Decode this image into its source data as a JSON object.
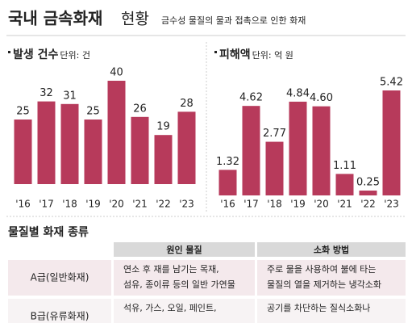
{
  "header": {
    "title": "국내 금속화재",
    "title_light": "현황",
    "subtitle": "금수성 물질의 물과 접촉으로 인한 화재"
  },
  "chart_data": [
    {
      "type": "bar",
      "title": "발생 건수",
      "unit": "단위: 건",
      "color": "#b73a5b",
      "categories": [
        "'16",
        "'17",
        "'18",
        "'19",
        "'20",
        "'21",
        "'22",
        "'23"
      ],
      "values": [
        25,
        32,
        31,
        25,
        40,
        26,
        19,
        28
      ]
    },
    {
      "type": "bar",
      "title": "피해액",
      "unit": "단위: 억 원",
      "color": "#b73a5b",
      "categories": [
        "'16",
        "'17",
        "'18",
        "'19",
        "'20",
        "'21",
        "'22",
        "'23"
      ],
      "values": [
        1.32,
        4.62,
        2.77,
        4.84,
        4.6,
        1.11,
        0.25,
        5.42
      ],
      "value_labels": [
        "1.32",
        "4.62",
        "2.77",
        "4.84",
        "4.60",
        "1.11",
        "0.25",
        "5.42"
      ]
    }
  ],
  "table": {
    "title": "물질별 화재 종류",
    "headers": [
      "원인 물질",
      "소화 방법"
    ],
    "rows": [
      [
        "A급(일반화재)",
        [
          "연소 후 재를 남기는 목재,",
          "섬유, 종이류 등의 일반 가연물"
        ],
        [
          "주로 물을 사용하여 불에 타는",
          "물질의 열을 제거하는 냉각소화"
        ]
      ],
      [
        "B급(유류화재)",
        [
          "석유, 가스, 오일, 페인트,"
        ],
        [
          "공기를 차단하는 질식소화나"
        ]
      ]
    ]
  }
}
